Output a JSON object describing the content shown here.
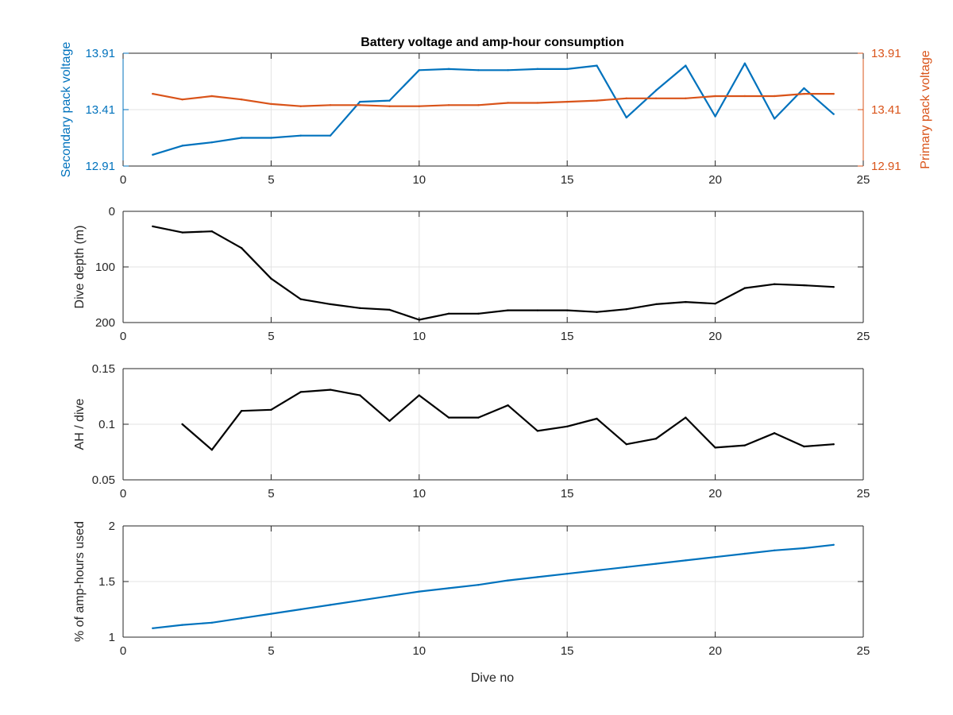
{
  "figure": {
    "title": "Battery voltage and amp-hour consumption",
    "xlabel": "Dive no"
  },
  "chart_data": [
    {
      "type": "line",
      "title": "Battery voltage and amp-hour consumption",
      "xlabel": "",
      "ylabel": "Secondary pack voltage",
      "ylabel_right": "Primary pack voltage",
      "xlim": [
        0,
        25
      ],
      "xticks": [
        0,
        5,
        10,
        15,
        20,
        25
      ],
      "ylim": [
        12.91,
        13.91
      ],
      "yticks": [
        12.91,
        13.41,
        13.91
      ],
      "ylim_right": [
        12.91,
        13.91
      ],
      "yticks_right": [
        12.91,
        13.41,
        13.91
      ],
      "grid": true,
      "left_color": "#0072BD",
      "right_color": "#D95319",
      "series": [
        {
          "axis": "left",
          "color": "#0072BD",
          "x": [
            1,
            2,
            3,
            4,
            5,
            6,
            7,
            8,
            9,
            10,
            11,
            12,
            13,
            14,
            15,
            16,
            17,
            18,
            19,
            20,
            21,
            22,
            23,
            24
          ],
          "y": [
            13.01,
            13.09,
            13.12,
            13.16,
            13.16,
            13.18,
            13.18,
            13.48,
            13.49,
            13.76,
            13.77,
            13.76,
            13.76,
            13.77,
            13.77,
            13.8,
            13.34,
            13.58,
            13.8,
            13.35,
            13.82,
            13.33,
            13.6,
            13.37
          ]
        },
        {
          "axis": "right",
          "color": "#D95319",
          "x": [
            1,
            2,
            3,
            4,
            5,
            6,
            7,
            8,
            9,
            10,
            11,
            12,
            13,
            14,
            15,
            16,
            17,
            18,
            19,
            20,
            21,
            22,
            23,
            24
          ],
          "y": [
            13.55,
            13.5,
            13.53,
            13.5,
            13.46,
            13.44,
            13.45,
            13.45,
            13.44,
            13.44,
            13.45,
            13.45,
            13.47,
            13.47,
            13.48,
            13.49,
            13.51,
            13.51,
            13.51,
            13.53,
            13.53,
            13.53,
            13.55,
            13.55
          ]
        }
      ]
    },
    {
      "type": "line",
      "ylabel": "Dive depth (m)",
      "xlim": [
        0,
        25
      ],
      "xticks": [
        0,
        5,
        10,
        15,
        20,
        25
      ],
      "ylim": [
        0,
        200
      ],
      "y_reversed": true,
      "yticks": [
        0,
        100,
        200
      ],
      "grid": true,
      "series": [
        {
          "color": "#000000",
          "x": [
            1,
            2,
            3,
            4,
            5,
            6,
            7,
            8,
            9,
            10,
            11,
            12,
            13,
            14,
            15,
            16,
            17,
            18,
            19,
            20,
            21,
            22,
            23,
            24
          ],
          "y": [
            27,
            38,
            36,
            66,
            121,
            158,
            167,
            174,
            177,
            195,
            184,
            184,
            178,
            178,
            178,
            181,
            176,
            167,
            163,
            166,
            138,
            131,
            133,
            136
          ]
        }
      ]
    },
    {
      "type": "line",
      "ylabel": "AH / dive",
      "xlim": [
        0,
        25
      ],
      "xticks": [
        0,
        5,
        10,
        15,
        20,
        25
      ],
      "ylim": [
        0.05,
        0.15
      ],
      "yticks": [
        0.05,
        0.1,
        0.15
      ],
      "grid": true,
      "series": [
        {
          "color": "#000000",
          "x": [
            2,
            3,
            4,
            5,
            6,
            7,
            8,
            9,
            10,
            11,
            12,
            13,
            14,
            15,
            16,
            17,
            18,
            19,
            20,
            21,
            22,
            23,
            24
          ],
          "y": [
            0.1,
            0.077,
            0.112,
            0.113,
            0.129,
            0.131,
            0.126,
            0.103,
            0.126,
            0.106,
            0.106,
            0.117,
            0.094,
            0.098,
            0.105,
            0.082,
            0.087,
            0.106,
            0.079,
            0.081,
            0.092,
            0.08,
            0.082
          ]
        }
      ]
    },
    {
      "type": "line",
      "ylabel": "% of amp-hours used",
      "xlabel": "Dive no",
      "xlim": [
        0,
        25
      ],
      "xticks": [
        0,
        5,
        10,
        15,
        20,
        25
      ],
      "ylim": [
        1,
        2
      ],
      "yticks": [
        1,
        1.5,
        2
      ],
      "grid": true,
      "series": [
        {
          "color": "#0072BD",
          "x": [
            1,
            2,
            3,
            4,
            5,
            6,
            7,
            8,
            9,
            10,
            11,
            12,
            13,
            14,
            15,
            16,
            17,
            18,
            19,
            20,
            21,
            22,
            23,
            24
          ],
          "y": [
            1.08,
            1.11,
            1.13,
            1.17,
            1.21,
            1.25,
            1.29,
            1.33,
            1.37,
            1.41,
            1.44,
            1.47,
            1.51,
            1.54,
            1.57,
            1.6,
            1.63,
            1.66,
            1.69,
            1.72,
            1.75,
            1.78,
            1.8,
            1.83
          ]
        }
      ]
    }
  ]
}
